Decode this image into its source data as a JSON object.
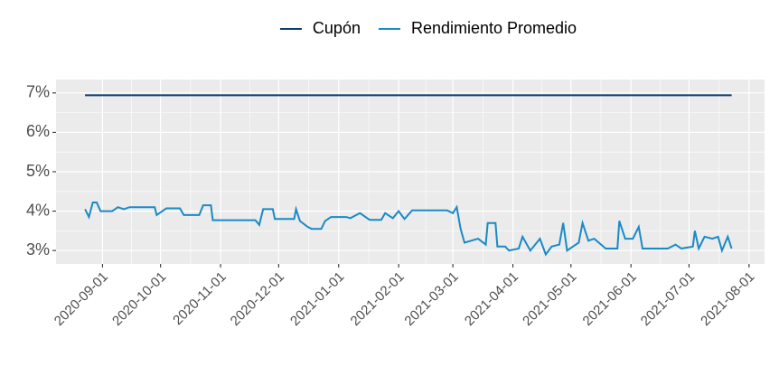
{
  "chart_data": {
    "type": "line",
    "series": [
      {
        "name": "Cupón",
        "color": "#0b3b6f",
        "x": [
          "2020-08-23",
          "2021-07-23"
        ],
        "values": [
          6.94,
          6.94
        ]
      },
      {
        "name": "Rendimiento Promedio",
        "color": "#1a8ac6",
        "x": [
          "2020-08-23",
          "2020-08-25",
          "2020-08-27",
          "2020-08-29",
          "2020-08-31",
          "2020-09-06",
          "2020-09-09",
          "2020-09-12",
          "2020-09-15",
          "2020-09-28",
          "2020-09-29",
          "2020-10-04",
          "2020-10-11",
          "2020-10-13",
          "2020-10-21",
          "2020-10-23",
          "2020-10-27",
          "2020-10-28",
          "2020-11-19",
          "2020-11-21",
          "2020-11-23",
          "2020-11-28",
          "2020-11-29",
          "2020-12-09",
          "2020-12-10",
          "2020-12-12",
          "2020-12-16",
          "2020-12-18",
          "2020-12-23",
          "2020-12-25",
          "2020-12-28",
          "2021-01-05",
          "2021-01-07",
          "2021-01-12",
          "2021-01-17",
          "2021-01-23",
          "2021-01-25",
          "2021-01-29",
          "2021-02-01",
          "2021-02-04",
          "2021-02-08",
          "2021-02-26",
          "2021-03-01",
          "2021-03-03",
          "2021-03-05",
          "2021-03-07",
          "2021-03-14",
          "2021-03-18",
          "2021-03-19",
          "2021-03-23",
          "2021-03-24",
          "2021-03-28",
          "2021-03-30",
          "2021-04-04",
          "2021-04-06",
          "2021-04-10",
          "2021-04-15",
          "2021-04-18",
          "2021-04-21",
          "2021-04-25",
          "2021-04-27",
          "2021-04-29",
          "2021-05-02",
          "2021-05-05",
          "2021-05-07",
          "2021-05-10",
          "2021-05-13",
          "2021-05-19",
          "2021-05-25",
          "2021-05-26",
          "2021-05-29",
          "2021-06-02",
          "2021-06-05",
          "2021-06-07",
          "2021-06-20",
          "2021-06-24",
          "2021-06-27",
          "2021-07-03",
          "2021-07-04",
          "2021-07-06",
          "2021-07-09",
          "2021-07-13",
          "2021-07-16",
          "2021-07-18",
          "2021-07-21",
          "2021-07-23"
        ],
        "values": [
          4.05,
          3.85,
          4.22,
          4.22,
          4.0,
          4.0,
          4.1,
          4.05,
          4.1,
          4.1,
          3.9,
          4.07,
          4.07,
          3.9,
          3.9,
          4.15,
          4.15,
          3.77,
          3.77,
          3.65,
          4.05,
          4.05,
          3.8,
          3.8,
          4.05,
          3.75,
          3.6,
          3.55,
          3.55,
          3.75,
          3.85,
          3.85,
          3.82,
          3.95,
          3.78,
          3.78,
          3.95,
          3.82,
          4.0,
          3.8,
          4.02,
          4.02,
          3.95,
          4.1,
          3.55,
          3.2,
          3.3,
          3.15,
          3.7,
          3.7,
          3.1,
          3.1,
          3.0,
          3.05,
          3.35,
          3.0,
          3.3,
          2.9,
          3.1,
          3.15,
          3.7,
          3.0,
          3.1,
          3.2,
          3.7,
          3.25,
          3.3,
          3.05,
          3.05,
          3.75,
          3.3,
          3.3,
          3.6,
          3.05,
          3.05,
          3.15,
          3.05,
          3.1,
          3.5,
          3.05,
          3.35,
          3.3,
          3.35,
          3.0,
          3.35,
          3.05
        ]
      }
    ],
    "xlim": [
      "2020-08-08",
      "2021-08-09"
    ],
    "xticks": [
      "2020-09-01",
      "2020-10-01",
      "2020-11-01",
      "2020-12-01",
      "2021-01-01",
      "2021-02-01",
      "2021-03-01",
      "2021-04-01",
      "2021-05-01",
      "2021-06-01",
      "2021-07-01",
      "2021-08-01"
    ],
    "ylim": [
      2.66,
      7.34
    ],
    "yticks": [
      {
        "value": 3,
        "label": "3%"
      },
      {
        "value": 4,
        "label": "4%"
      },
      {
        "value": 5,
        "label": "5%"
      },
      {
        "value": 6,
        "label": "6%"
      },
      {
        "value": 7,
        "label": "7%"
      }
    ],
    "grid": true,
    "legend": "top"
  }
}
